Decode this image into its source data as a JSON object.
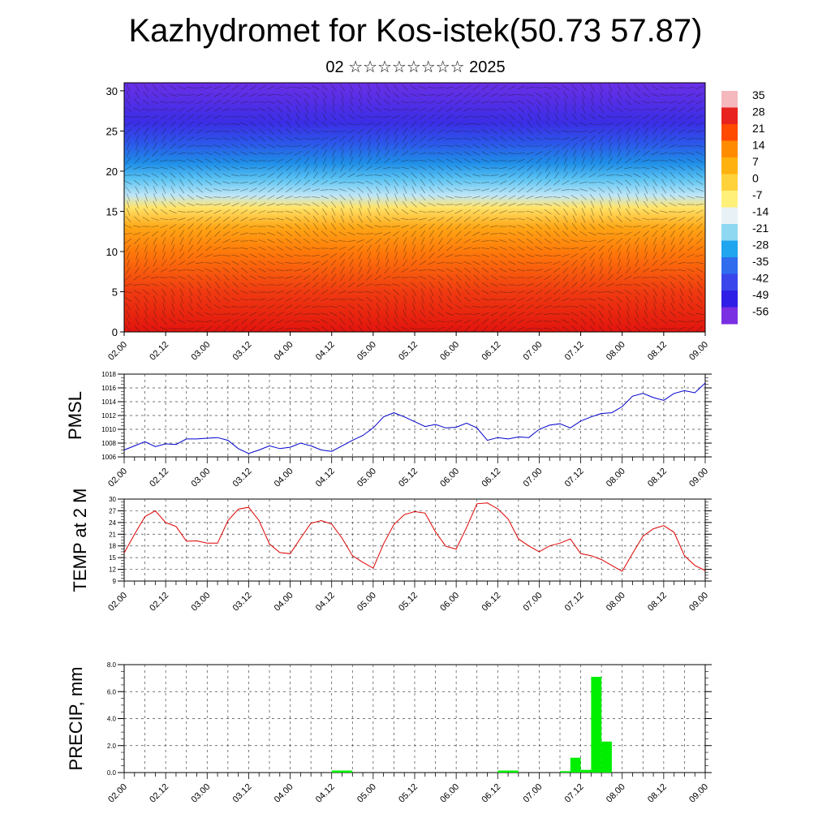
{
  "title": "Kazhydromet for Kos-istek(50.73 57.87)",
  "subtitle": "02 ☆☆☆☆☆☆☆☆ 2025",
  "time_ticks": [
    "02.00",
    "02.12",
    "03.00",
    "03.12",
    "04.00",
    "04.12",
    "05.00",
    "05.12",
    "06.00",
    "06.12",
    "07.00",
    "07.12",
    "08.00",
    "08.12",
    "09.00"
  ],
  "chart_data": [
    {
      "type": "heatmap",
      "description_source": "cross-section",
      "x": [
        "02.00",
        "02.12",
        "03.00",
        "03.12",
        "04.00",
        "04.12",
        "05.00",
        "05.12",
        "06.00",
        "06.12",
        "07.00",
        "07.12",
        "08.00",
        "08.12",
        "09.00"
      ],
      "ylim": [
        0,
        31
      ],
      "yticks": [
        0,
        5,
        10,
        15,
        20,
        25,
        30
      ],
      "colorbar": {
        "labels": [
          "35",
          "28",
          "21",
          "14",
          "7",
          "0",
          "-7",
          "-14",
          "-21",
          "-28",
          "-35",
          "-42",
          "-49",
          "-56"
        ],
        "colors": [
          "#f4b8bd",
          "#e8231f",
          "#ff4a00",
          "#ff8c00",
          "#ffb20f",
          "#ffd23c",
          "#fff07a",
          "#e8f2f6",
          "#8fd8f2",
          "#1fa6ee",
          "#2f6dee",
          "#3a46ec",
          "#2f1ee6",
          "#7a2fe2"
        ]
      },
      "band_colors": [
        {
          "y": 0,
          "color": "#e2140e"
        },
        {
          "y": 5,
          "color": "#f03a10"
        },
        {
          "y": 10,
          "color": "#ff7a0a"
        },
        {
          "y": 13,
          "color": "#ffa615"
        },
        {
          "y": 15.5,
          "color": "#ffe46a"
        },
        {
          "y": 17,
          "color": "#bfe6f6"
        },
        {
          "y": 19,
          "color": "#5cc4f3"
        },
        {
          "y": 21,
          "color": "#1f8fe8"
        },
        {
          "y": 23.5,
          "color": "#2c56ea"
        },
        {
          "y": 26,
          "color": "#3a2ee6"
        },
        {
          "y": 31,
          "color": "#6a2fe6"
        }
      ]
    },
    {
      "type": "line",
      "ylabel": "PMSL",
      "ylim": [
        1006,
        1018
      ],
      "yticks": [
        1006,
        1008,
        1010,
        1012,
        1014,
        1016,
        1018
      ],
      "color": "#0000cc",
      "x_step_hours": 3,
      "values": [
        1007.0,
        1007.6,
        1008.2,
        1007.5,
        1007.9,
        1007.8,
        1008.6,
        1008.6,
        1008.7,
        1008.8,
        1008.4,
        1007.2,
        1006.5,
        1007.0,
        1007.6,
        1007.2,
        1007.4,
        1008.0,
        1007.6,
        1007.0,
        1006.8,
        1007.6,
        1008.4,
        1009.1,
        1010.2,
        1011.8,
        1012.4,
        1011.8,
        1011.1,
        1010.4,
        1010.7,
        1010.2,
        1010.3,
        1010.9,
        1010.2,
        1008.4,
        1008.8,
        1008.6,
        1008.9,
        1008.8,
        1010.0,
        1010.6,
        1010.8,
        1010.2,
        1011.2,
        1011.8,
        1012.3,
        1012.4,
        1013.3,
        1014.8,
        1015.2,
        1014.6,
        1014.2,
        1015.2,
        1015.6,
        1015.3,
        1016.7
      ]
    },
    {
      "type": "line",
      "ylabel": "TEMP at 2 M",
      "ylim": [
        9,
        30
      ],
      "yticks": [
        9,
        12,
        15,
        18,
        21,
        24,
        27,
        30
      ],
      "color": "#dd0000",
      "x_step_hours": 3,
      "values": [
        16.2,
        21.0,
        25.5,
        27.0,
        24.0,
        23.0,
        19.2,
        19.3,
        18.7,
        18.7,
        24.5,
        27.4,
        27.9,
        24.5,
        18.5,
        16.3,
        16.0,
        20.0,
        23.8,
        24.5,
        23.6,
        20.0,
        15.5,
        13.8,
        12.3,
        18.5,
        23.5,
        26.0,
        26.8,
        26.4,
        21.6,
        17.9,
        17.2,
        22.7,
        28.8,
        29.0,
        27.5,
        24.9,
        19.8,
        18.0,
        16.5,
        18.0,
        18.7,
        19.8,
        16.0,
        15.5,
        14.5,
        13.0,
        11.5,
        16.1,
        20.5,
        22.4,
        23.2,
        21.5,
        15.5,
        13.0,
        11.7
      ]
    },
    {
      "type": "bar",
      "ylabel": "PRECIP, mm",
      "ylim": [
        0,
        8
      ],
      "yticks": [
        "0.0",
        "2.0",
        "4.0",
        "6.0",
        "8.0"
      ],
      "color": "#00ee00",
      "x_step_hours": 3,
      "values": [
        0,
        0,
        0,
        0,
        0,
        0,
        0,
        0,
        0,
        0,
        0,
        0,
        0,
        0,
        0,
        0,
        0,
        0,
        0,
        0,
        0.15,
        0.15,
        0,
        0,
        0,
        0,
        0,
        0,
        0,
        0,
        0,
        0,
        0,
        0,
        0,
        0,
        0.15,
        0.15,
        0,
        0,
        0,
        0,
        0.1,
        1.1,
        0.2,
        7.1,
        2.3,
        0,
        0,
        0,
        0,
        0,
        0,
        0,
        0,
        0
      ]
    }
  ]
}
